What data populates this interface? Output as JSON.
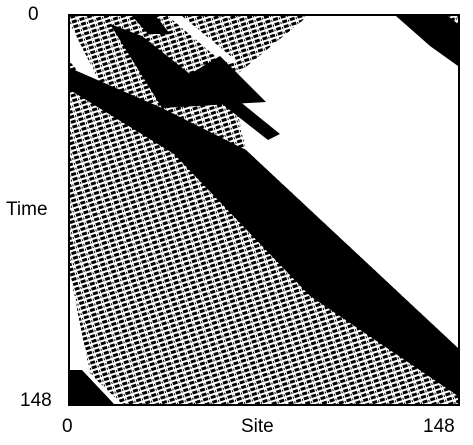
{
  "diagram": {
    "y_axis": {
      "label": "Time",
      "tick_top": "0",
      "tick_bottom": "148"
    },
    "x_axis": {
      "label": "Site",
      "tick_left": "0",
      "tick_right": "148"
    },
    "colors": {
      "cell_on": "#000000",
      "cell_off": "#ffffff",
      "frame": "#000000"
    }
  }
}
